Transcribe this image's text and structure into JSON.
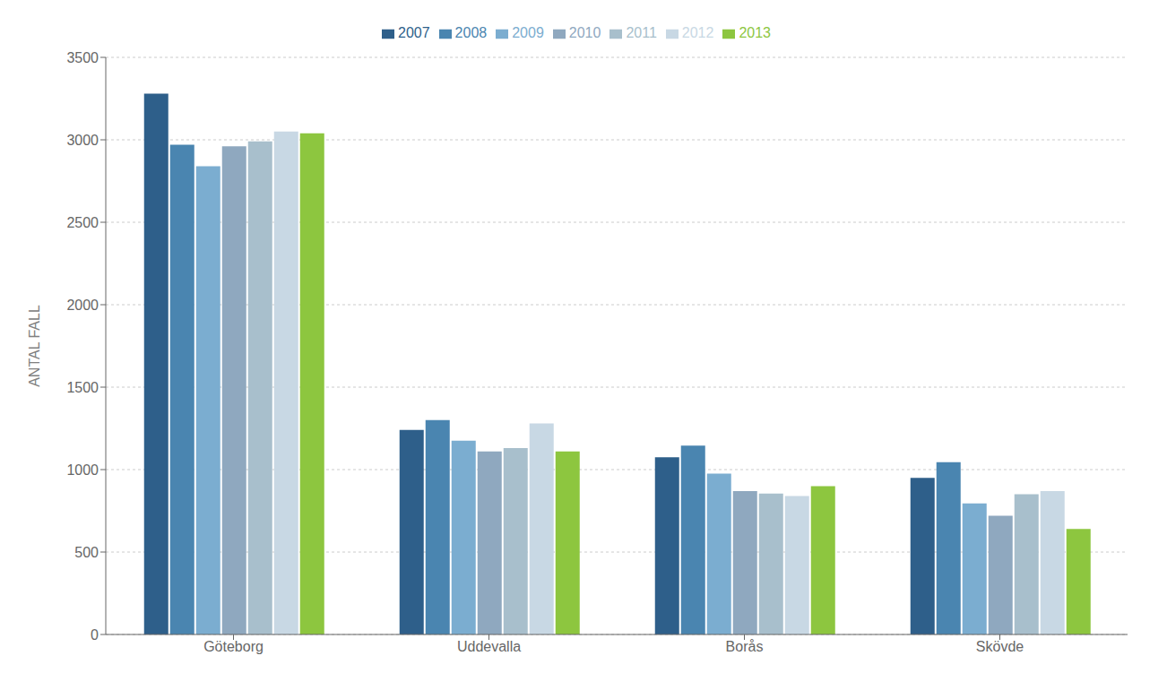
{
  "chart_data": {
    "type": "bar",
    "ylabel": "ANTAL FALL",
    "categories": [
      "Göteborg",
      "Uddevalla",
      "Borås",
      "Skövde"
    ],
    "series": [
      {
        "name": "2007",
        "color": "#2e5f8a",
        "values": [
          3280,
          1240,
          1075,
          950
        ]
      },
      {
        "name": "2008",
        "color": "#4a85b0",
        "values": [
          2970,
          1300,
          1145,
          1045
        ]
      },
      {
        "name": "2009",
        "color": "#7badd0",
        "values": [
          2840,
          1175,
          975,
          795
        ]
      },
      {
        "name": "2010",
        "color": "#8fa8bf",
        "values": [
          2960,
          1110,
          870,
          720
        ]
      },
      {
        "name": "2011",
        "color": "#a8bfcc",
        "values": [
          2990,
          1130,
          855,
          850
        ]
      },
      {
        "name": "2012",
        "color": "#c8d8e4",
        "values": [
          3050,
          1280,
          840,
          870
        ]
      },
      {
        "name": "2013",
        "color": "#8dc63f",
        "values": [
          3040,
          1110,
          900,
          640
        ]
      }
    ],
    "ylim": [
      0,
      3500
    ],
    "yticks": [
      0,
      500,
      1000,
      1500,
      2000,
      2500,
      3000,
      3500
    ],
    "grid": true,
    "legend": "top"
  }
}
